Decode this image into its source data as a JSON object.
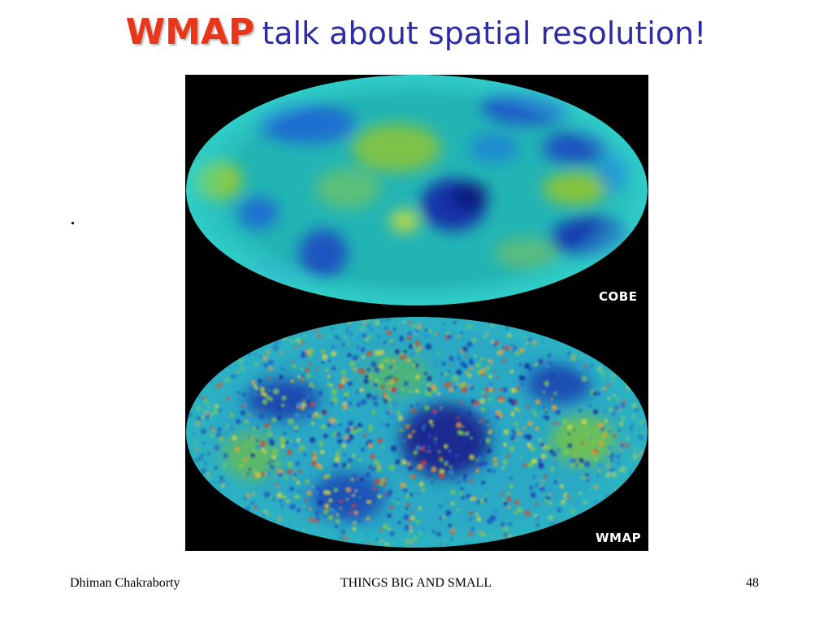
{
  "title": {
    "accent": "WMAP",
    "rest": "talk about spatial resolution!"
  },
  "body": {
    "bullet": "."
  },
  "figure": {
    "top_map_label": "COBE",
    "bottom_map_label": "WMAP"
  },
  "footer": {
    "author": "Dhiman Chakraborty",
    "course": "THINGS BIG AND SMALL",
    "page": "48"
  },
  "colors": {
    "title_accent": "#e8361b",
    "title_text": "#2c2ca6",
    "figure_background": "#000000",
    "map_labels": "#ffffff"
  }
}
